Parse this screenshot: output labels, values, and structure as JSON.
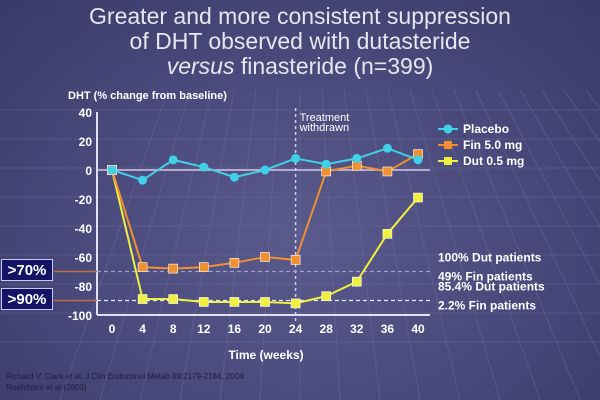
{
  "title": {
    "line1": "Greater and more consistent suppression",
    "line2": "of DHT observed with dutasteride",
    "line3_italic": "versus",
    "line3_rest": " finasteride (n=399)"
  },
  "chart_data": {
    "type": "line",
    "ylabel": "DHT (% change from baseline)",
    "xlabel": "Time (weeks)",
    "x": [
      0,
      4,
      8,
      12,
      16,
      20,
      24,
      28,
      32,
      36,
      40
    ],
    "xticks": [
      "0",
      "4",
      "8",
      "12",
      "16",
      "20",
      "24",
      "28",
      "32",
      "36",
      "40"
    ],
    "yticks": [
      "40",
      "20",
      "0",
      "-20",
      "-40",
      "-60",
      "-80",
      "-100"
    ],
    "ylim": [
      -100,
      40
    ],
    "xlim": [
      0,
      40
    ],
    "legend_placement": "top-right",
    "series": [
      {
        "name": "Placebo",
        "color": "#40d0e8",
        "marker": "circle",
        "values": [
          0,
          -7,
          7,
          2,
          -5,
          0,
          8,
          4,
          8,
          15,
          7
        ]
      },
      {
        "name": "Fin 5.0 mg",
        "color": "#f09030",
        "marker": "square",
        "values": [
          0,
          -67,
          -68,
          -67,
          -64,
          -60,
          -62,
          -1,
          3,
          -1,
          11
        ]
      },
      {
        "name": "Dut 0.5 mg",
        "color": "#f0f040",
        "marker": "square",
        "values": [
          0,
          -89,
          -89,
          -91,
          -91,
          -91,
          -92,
          -87,
          -77,
          -44,
          -19
        ]
      }
    ],
    "annotations": {
      "withdrawal": {
        "x": 24,
        "text1": "Treatment",
        "text2": "withdrawn"
      },
      "threshold70": {
        "y": -70,
        "badge": ">70%",
        "text1": "100% Dut patients",
        "text2": "49% Fin patients"
      },
      "threshold90": {
        "y": -90,
        "badge": ">90%",
        "text1": "85.4% Dut patients",
        "text2": "2.2% Fin patients"
      }
    }
  },
  "citations": [
    "Richard V. Clark et al. J Clin Endocrinol Metab 89:2179-2184, 2004",
    "Roehrborn et al (2003)"
  ]
}
